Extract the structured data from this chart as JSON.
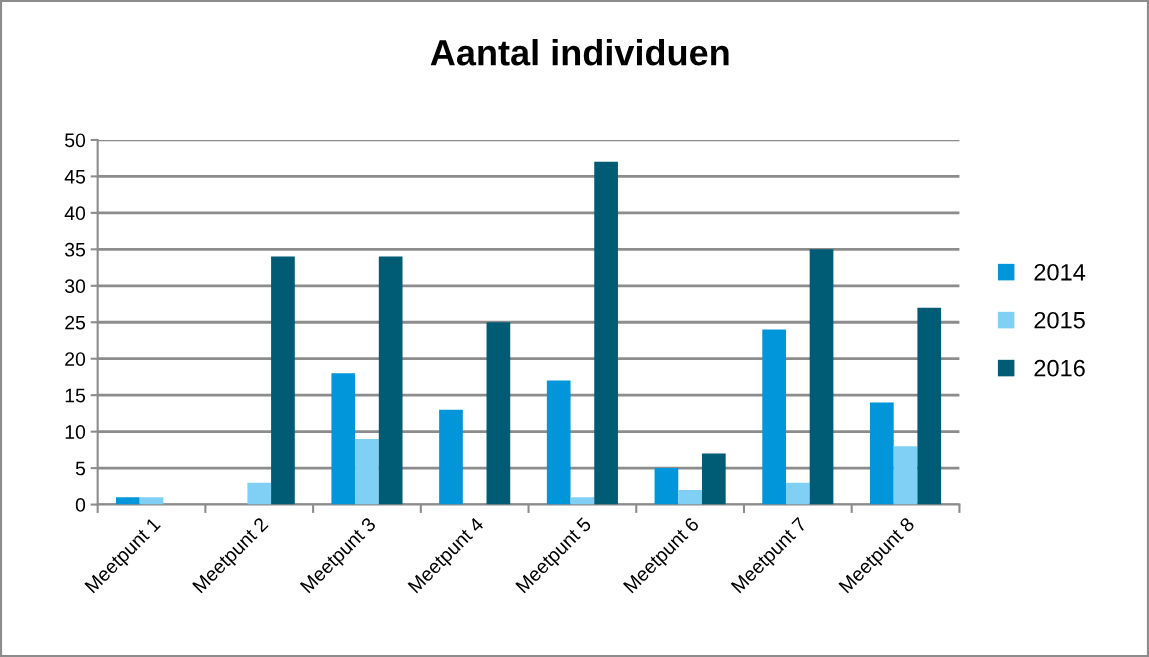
{
  "chart_data": {
    "type": "bar",
    "title": "Aantal individuen",
    "categories": [
      "Meetpunt 1",
      "Meetpunt 2",
      "Meetpunt 3",
      "Meetpunt 4",
      "Meetpunt 5",
      "Meetpunt 6",
      "Meetpunt 7",
      "Meetpunt 8"
    ],
    "series": [
      {
        "name": "2014",
        "color": "#0096d9",
        "values": [
          1,
          0,
          18,
          13,
          17,
          5,
          24,
          14
        ]
      },
      {
        "name": "2015",
        "color": "#80d0f6",
        "values": [
          1,
          3,
          9,
          0,
          1,
          2,
          3,
          8
        ]
      },
      {
        "name": "2016",
        "color": "#005b75",
        "values": [
          0,
          34,
          34,
          25,
          47,
          7,
          35,
          27
        ]
      }
    ],
    "ylim": [
      0,
      50
    ],
    "yticks": [
      0,
      5,
      10,
      15,
      20,
      25,
      30,
      35,
      40,
      45,
      50
    ],
    "grid": "y",
    "legend": "right"
  }
}
